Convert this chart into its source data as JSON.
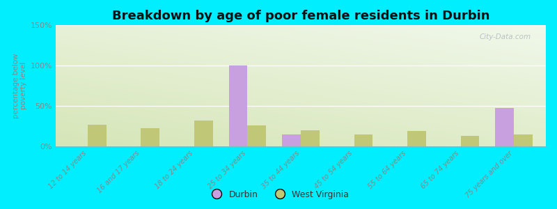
{
  "title": "Breakdown by age of poor female residents in Durbin",
  "ylabel_line1": "percentage below",
  "ylabel_line2": "poverty level",
  "categories": [
    "12 to 14 years",
    "16 and 17 years",
    "18 to 24 years",
    "25 to 34 years",
    "35 to 44 years",
    "45 to 54 years",
    "55 to 64 years",
    "65 to 74 years",
    "75 years and over"
  ],
  "durbin_values": [
    0,
    0,
    0,
    100,
    15,
    0,
    0,
    0,
    47
  ],
  "wv_values": [
    27,
    22,
    32,
    26,
    20,
    15,
    19,
    13,
    15
  ],
  "durbin_color": "#c8a0e0",
  "wv_color": "#c0c878",
  "background_color": "#00eeff",
  "ylim": [
    0,
    150
  ],
  "yticks": [
    0,
    50,
    100,
    150
  ],
  "ytick_labels": [
    "0%",
    "50%",
    "100%",
    "150%"
  ],
  "bar_width": 0.35,
  "title_fontsize": 13,
  "watermark": "City-Data.com",
  "legend_durbin": "Durbin",
  "legend_wv": "West Virginia",
  "tick_color": "#888888",
  "label_color": "#888888"
}
